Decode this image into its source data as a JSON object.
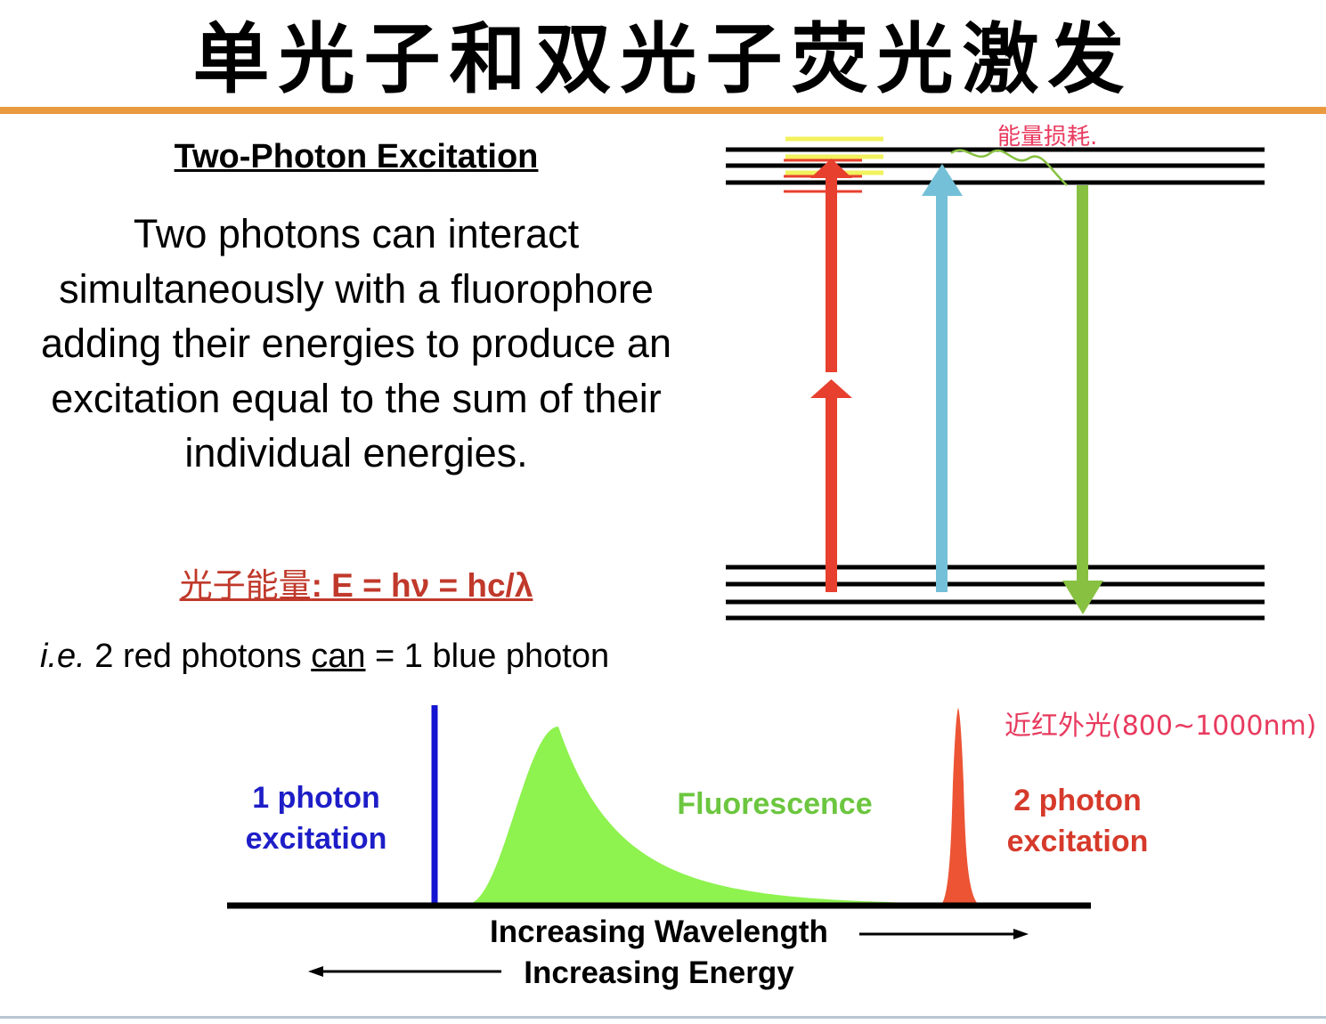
{
  "slide": {
    "title": "单光子和双光子荧光激发",
    "subheading": "Two-Photon Excitation",
    "body": "Two photons can interact simultaneously with a fluorophore adding their energies to produce an excitation equal to the sum of their individual energies.",
    "formula_cn": "光子能量",
    "formula_eq": ": E = hν = hc/λ",
    "ie_italic": "i.e.",
    "ie_pre": " 2 red photons ",
    "ie_underlined": "can",
    "ie_post": " = 1 blue photon"
  },
  "annotations": {
    "energy_diagram_note": "能量损耗.",
    "chart_note": "近红外光(800~1000nm)"
  },
  "colors": {
    "red": "#e8402e",
    "blue": "#74c0d8",
    "green": "#88c142",
    "yellow": "#f2f25e",
    "accent_orange": "#ea9a3e"
  },
  "chart_data": {
    "type": "area",
    "series_labels": {
      "one_photon": "1 photon excitation",
      "fluorescence": "Fluorescence",
      "two_photon": "2 photon excitation"
    },
    "xlabel": "Increasing Wavelength",
    "xlabel_reverse": "Increasing Energy",
    "grid": false
  }
}
